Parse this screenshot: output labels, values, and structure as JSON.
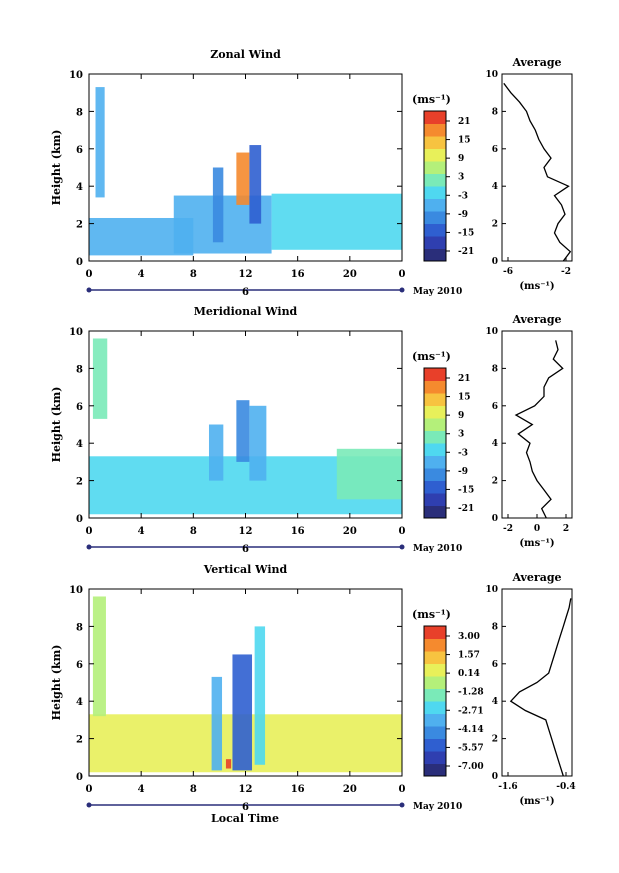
{
  "figure": {
    "xlabel": "Local Time",
    "ylabel": "Height (km)"
  },
  "colormap": [
    "#2a2e7a",
    "#2f3fb0",
    "#2f5fd0",
    "#3a8ae0",
    "#4fb0ef",
    "#4fd8f0",
    "#7aeab8",
    "#b4f07a",
    "#e8f05a",
    "#f7c340",
    "#f58a2e",
    "#e8402a"
  ],
  "chart_data": [
    {
      "type": "heatmap",
      "title": "Zonal Wind",
      "xlabel": "",
      "ylabel": "Height (km)",
      "xlim": [
        0,
        24
      ],
      "ylim": [
        0,
        10
      ],
      "x_ticks": [
        "0",
        "4",
        "8",
        "12",
        "16",
        "20",
        "0"
      ],
      "y_ticks": [
        "0",
        "2",
        "4",
        "6",
        "8",
        "10"
      ],
      "date_label": "6",
      "month_label": "May 2010",
      "colorbar": {
        "unit": "(ms⁻¹)",
        "ticks": [
          "21",
          "15",
          "9",
          "3",
          "-3",
          "-9",
          "-15",
          "-21"
        ],
        "range": [
          -24,
          24
        ]
      },
      "regions": [
        {
          "x0": 0,
          "x1": 8,
          "y0": 0.3,
          "y1": 2.3,
          "value": -7
        },
        {
          "x0": 0.5,
          "x1": 1.2,
          "y0": 3.4,
          "y1": 9.3,
          "value": -6
        },
        {
          "x0": 6.5,
          "x1": 14,
          "y0": 0.4,
          "y1": 3.5,
          "value": -8
        },
        {
          "x0": 9.5,
          "x1": 10.3,
          "y0": 1.0,
          "y1": 5.0,
          "value": -12
        },
        {
          "x0": 11.3,
          "x1": 12.3,
          "y0": 3.0,
          "y1": 5.8,
          "value": 18
        },
        {
          "x0": 12.3,
          "x1": 13.2,
          "y0": 2.0,
          "y1": 6.2,
          "value": -14
        },
        {
          "x0": 14,
          "x1": 24,
          "y0": 0.6,
          "y1": 3.6,
          "value": -4
        }
      ],
      "average_profile": {
        "title": "Average",
        "unit": "(ms⁻¹)",
        "xlim": [
          -6,
          -2
        ],
        "x_ticks": [
          "-6",
          "-2"
        ],
        "y_ticks": [
          "0",
          "2",
          "4",
          "6",
          "8",
          "10"
        ],
        "heights": [
          0,
          0.5,
          1,
          1.5,
          2,
          2.5,
          3,
          3.5,
          4,
          4.5,
          5,
          5.5,
          6,
          6.5,
          7,
          7.5,
          8,
          8.5,
          9,
          9.5
        ],
        "values": [
          -2.5,
          -2.1,
          -2.7,
          -3.0,
          -2.8,
          -2.4,
          -2.6,
          -3.0,
          -2.2,
          -3.4,
          -3.6,
          -3.2,
          -3.6,
          -3.9,
          -4.1,
          -4.4,
          -4.6,
          -5.0,
          -5.5,
          -5.9
        ]
      }
    },
    {
      "type": "heatmap",
      "title": "Meridional Wind",
      "xlabel": "",
      "ylabel": "Height (km)",
      "xlim": [
        0,
        24
      ],
      "ylim": [
        0,
        10
      ],
      "x_ticks": [
        "0",
        "4",
        "8",
        "12",
        "16",
        "20",
        "0"
      ],
      "y_ticks": [
        "0",
        "2",
        "4",
        "6",
        "8",
        "10"
      ],
      "date_label": "6",
      "month_label": "May 2010",
      "colorbar": {
        "unit": "(ms⁻¹)",
        "ticks": [
          "21",
          "15",
          "9",
          "3",
          "-3",
          "-9",
          "-15",
          "-21"
        ],
        "range": [
          -24,
          24
        ]
      },
      "regions": [
        {
          "x0": 0,
          "x1": 24,
          "y0": 0.2,
          "y1": 3.3,
          "value": -4
        },
        {
          "x0": 0.3,
          "x1": 1.4,
          "y0": 5.3,
          "y1": 9.6,
          "value": 2
        },
        {
          "x0": 9.2,
          "x1": 10.3,
          "y0": 2.0,
          "y1": 5.0,
          "value": -8
        },
        {
          "x0": 11.3,
          "x1": 12.3,
          "y0": 3.0,
          "y1": 6.3,
          "value": -10
        },
        {
          "x0": 12.3,
          "x1": 13.6,
          "y0": 2.0,
          "y1": 6.0,
          "value": -6
        },
        {
          "x0": 19,
          "x1": 24,
          "y0": 1.0,
          "y1": 3.7,
          "value": 2
        }
      ],
      "average_profile": {
        "title": "Average",
        "unit": "(ms⁻¹)",
        "xlim": [
          -3,
          3
        ],
        "x_ticks": [
          "-2",
          "0",
          "2"
        ],
        "y_ticks": [
          "0",
          "2",
          "4",
          "6",
          "8",
          "10"
        ],
        "heights": [
          0,
          0.5,
          1,
          1.5,
          2,
          2.5,
          3,
          3.5,
          4,
          4.5,
          5,
          5.5,
          6,
          6.5,
          7,
          7.5,
          8,
          8.5,
          9,
          9.5
        ],
        "values": [
          0.8,
          0.4,
          1.2,
          0.6,
          0.0,
          -0.4,
          -0.6,
          -0.9,
          -0.6,
          -1.6,
          -0.4,
          -1.8,
          -0.2,
          0.6,
          0.6,
          1.0,
          2.2,
          1.4,
          1.8,
          1.6
        ]
      }
    },
    {
      "type": "heatmap",
      "title": "Vertical Wind",
      "xlabel": "Local Time",
      "ylabel": "Height (km)",
      "xlim": [
        0,
        24
      ],
      "ylim": [
        0,
        10
      ],
      "x_ticks": [
        "0",
        "4",
        "8",
        "12",
        "16",
        "20",
        "0"
      ],
      "y_ticks": [
        "0",
        "2",
        "4",
        "6",
        "8",
        "10"
      ],
      "date_label": "6",
      "month_label": "May 2010",
      "colorbar": {
        "unit": "(ms⁻¹)",
        "ticks": [
          "3.00",
          "1.57",
          "0.14",
          "-1.28",
          "-2.71",
          "-4.14",
          "-5.57",
          "-7.00"
        ],
        "range": [
          -7.7,
          3.7
        ]
      },
      "regions": [
        {
          "x0": 0,
          "x1": 24,
          "y0": 0.2,
          "y1": 3.3,
          "value": 0.6
        },
        {
          "x0": 0.3,
          "x1": 1.3,
          "y0": 3.2,
          "y1": 9.6,
          "value": -0.4
        },
        {
          "x0": 9.4,
          "x1": 10.2,
          "y0": 0.3,
          "y1": 5.3,
          "value": -3.5
        },
        {
          "x0": 11.0,
          "x1": 12.5,
          "y0": 0.3,
          "y1": 6.5,
          "value": -5.0
        },
        {
          "x0": 12.7,
          "x1": 13.5,
          "y0": 0.6,
          "y1": 8.0,
          "value": -2.5
        },
        {
          "x0": 10.5,
          "x1": 10.9,
          "y0": 0.4,
          "y1": 0.9,
          "value": 3.0
        }
      ],
      "average_profile": {
        "title": "Average",
        "unit": "(ms⁻¹)",
        "xlim": [
          -1.6,
          -0.4
        ],
        "x_ticks": [
          "-1.6",
          "-0.4"
        ],
        "y_ticks": [
          "0",
          "2",
          "4",
          "6",
          "8",
          "10"
        ],
        "heights": [
          0,
          0.5,
          1,
          1.5,
          2,
          2.5,
          3,
          3.5,
          4,
          4.5,
          5,
          5.5,
          6,
          6.5,
          7,
          7.5,
          8,
          8.5,
          9,
          9.5
        ],
        "values": [
          -0.55,
          -0.6,
          -0.65,
          -0.7,
          -0.75,
          -0.8,
          -0.85,
          -1.2,
          -1.45,
          -1.3,
          -1.0,
          -0.8,
          -0.75,
          -0.7,
          -0.65,
          -0.6,
          -0.55,
          -0.5,
          -0.45,
          -0.42
        ]
      }
    }
  ]
}
